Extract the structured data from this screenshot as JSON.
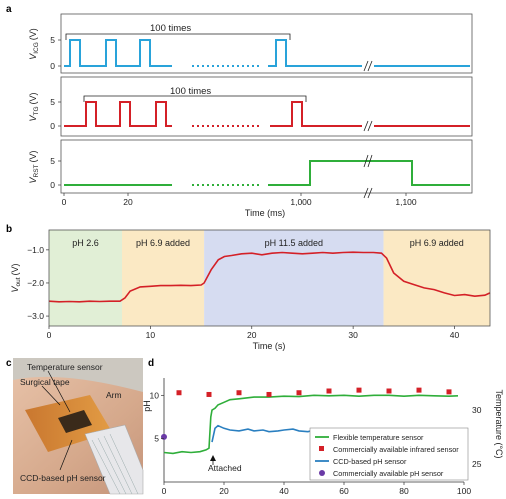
{
  "panels": {
    "a": "a",
    "b": "b",
    "c": "c",
    "d": "d"
  },
  "colors": {
    "icg": "#29a3da",
    "tg": "#d42027",
    "rst": "#2fae3a",
    "vout": "#d42027",
    "bg_green": "#e1efd6",
    "bg_yellow": "#fbe9c4",
    "bg_blue": "#d6dcf1",
    "flex_temp": "#2fae3a",
    "ir_sensor": "#d42027",
    "ccd_ph": "#2a7fc0",
    "commercial_ph": "#6a3aa6"
  },
  "chart_data": [
    {
      "id": "a",
      "type": "line",
      "xlabel": "Time (ms)",
      "xticks": [
        "0",
        "20",
        "1,000",
        "1,100"
      ],
      "subplots": [
        {
          "ylabel_main": "V",
          "ylabel_sub": "ICG",
          "ylabel_unit": "(V)",
          "yticks": [
            "0",
            "5"
          ],
          "annotation": "100 times",
          "color": "#29a3da"
        },
        {
          "ylabel_main": "V",
          "ylabel_sub": "TG",
          "ylabel_unit": "(V)",
          "yticks": [
            "0",
            "5"
          ],
          "annotation": "100 times",
          "color": "#d42027"
        },
        {
          "ylabel_main": "V",
          "ylabel_sub": "RST",
          "ylabel_unit": "(V)",
          "yticks": [
            "0",
            "5"
          ],
          "annotation": "",
          "color": "#2fae3a"
        }
      ]
    },
    {
      "id": "b",
      "type": "line",
      "xlabel": "Time (s)",
      "ylabel_main": "V",
      "ylabel_sub": "out",
      "ylabel_unit": "(V)",
      "xlim": [
        0,
        43.5
      ],
      "ylim": [
        -3.3,
        -0.4
      ],
      "xticks": [
        0,
        10,
        20,
        30,
        40
      ],
      "yticks": [
        -3.0,
        -2.0,
        -1.0
      ],
      "ytick_labels": [
        "−3.0",
        "−2.0",
        "−1.0"
      ],
      "regions": [
        {
          "label": "pH 2.6",
          "x0": 0,
          "x1": 7.2,
          "color": "#e1efd6"
        },
        {
          "label": "pH 6.9 added",
          "x0": 7.2,
          "x1": 15.3,
          "color": "#fbe9c4"
        },
        {
          "label": "pH 11.5 added",
          "x0": 15.3,
          "x1": 33.0,
          "color": "#d6dcf1"
        },
        {
          "label": "pH 6.9 added",
          "x0": 33.0,
          "x1": 43.5,
          "color": "#fbe9c4"
        }
      ],
      "series": [
        {
          "x": [
            0,
            1,
            2,
            3,
            4,
            5,
            6,
            7,
            7.5,
            8,
            9,
            10,
            11,
            12,
            13,
            14,
            15,
            15.3,
            16,
            16.7,
            17.3,
            18,
            19,
            20,
            21,
            22,
            23,
            24,
            25,
            26,
            27,
            28,
            29,
            30,
            31,
            32,
            32.8,
            33.3,
            34,
            35,
            36,
            37,
            38,
            39,
            40,
            41,
            42,
            43,
            43.5
          ],
          "y": [
            -2.55,
            -2.57,
            -2.56,
            -2.57,
            -2.55,
            -2.56,
            -2.55,
            -2.55,
            -2.45,
            -2.25,
            -2.12,
            -2.1,
            -2.08,
            -2.08,
            -2.07,
            -2.08,
            -2.06,
            -2.0,
            -1.6,
            -1.3,
            -1.2,
            -1.17,
            -1.12,
            -1.1,
            -1.15,
            -1.1,
            -1.08,
            -1.1,
            -1.12,
            -1.1,
            -1.08,
            -1.1,
            -1.08,
            -1.07,
            -1.08,
            -1.08,
            -1.1,
            -1.25,
            -1.7,
            -1.95,
            -2.05,
            -2.15,
            -2.2,
            -2.3,
            -2.38,
            -2.35,
            -2.4,
            -2.37,
            -2.3
          ]
        }
      ]
    },
    {
      "id": "d",
      "type": "line",
      "xlim": [
        0,
        100
      ],
      "ylim": [
        0,
        12
      ],
      "xticks": [
        0,
        20,
        40,
        60,
        80,
        100
      ],
      "yticks": [
        5,
        10
      ],
      "ylabel": "pH",
      "y2label": "Temperature (°C)",
      "y2ticks": [
        "25",
        "30"
      ],
      "annotation": "Attached",
      "series": [
        {
          "name": "Flexible temperature sensor",
          "x": [
            0,
            3,
            6,
            9,
            12,
            14,
            15,
            15.6,
            16,
            17,
            18,
            20,
            22,
            25,
            30,
            35,
            40,
            45,
            50,
            55,
            60,
            65,
            70,
            75,
            80,
            85,
            90,
            95,
            98
          ],
          "y": [
            3.4,
            3.3,
            3.5,
            3.4,
            3.5,
            3.7,
            3.9,
            7.5,
            8.3,
            8.5,
            8.9,
            9.2,
            9.5,
            9.6,
            9.8,
            9.8,
            9.9,
            9.85,
            10.0,
            9.95,
            10.0,
            9.9,
            10.0,
            10.0,
            9.9,
            10.0,
            9.95,
            9.9,
            9.95
          ]
        },
        {
          "name": "Commercially available infrared sensor",
          "x": [
            5,
            15,
            25,
            35,
            45,
            55,
            65,
            75,
            85,
            95
          ],
          "y": [
            10.3,
            10.1,
            10.3,
            10.1,
            10.3,
            10.5,
            10.6,
            10.5,
            10.6,
            10.4
          ]
        },
        {
          "name": "CCD-based pH sensor",
          "x": [
            16,
            17,
            18,
            20,
            22,
            25,
            28,
            30,
            33,
            35,
            38,
            40,
            43,
            45,
            48,
            50,
            53,
            55,
            58,
            60,
            63,
            65,
            68,
            70,
            73,
            75,
            78,
            80,
            83,
            85,
            88,
            90,
            93,
            95
          ],
          "y": [
            4.6,
            6.2,
            6.5,
            6.2,
            6.0,
            5.9,
            6.1,
            5.9,
            6.0,
            5.8,
            5.9,
            6.0,
            6.1,
            5.9,
            5.8,
            6.0,
            6.0,
            5.8,
            5.9,
            6.1,
            6.0,
            5.8,
            6.0,
            5.9,
            5.9,
            5.8,
            6.0,
            5.9,
            5.8,
            5.8,
            5.9,
            5.8,
            5.7,
            5.9
          ]
        },
        {
          "name": "Commercially available pH sensor",
          "x": [
            0,
            98
          ],
          "y": [
            5.2,
            5.2
          ]
        }
      ]
    }
  ],
  "photo": {
    "labels": {
      "temperature_sensor": "Temperature sensor",
      "surgical_tape": "Surgical tape",
      "arm": "Arm",
      "ccd_sensor": "CCD-based pH sensor"
    }
  }
}
